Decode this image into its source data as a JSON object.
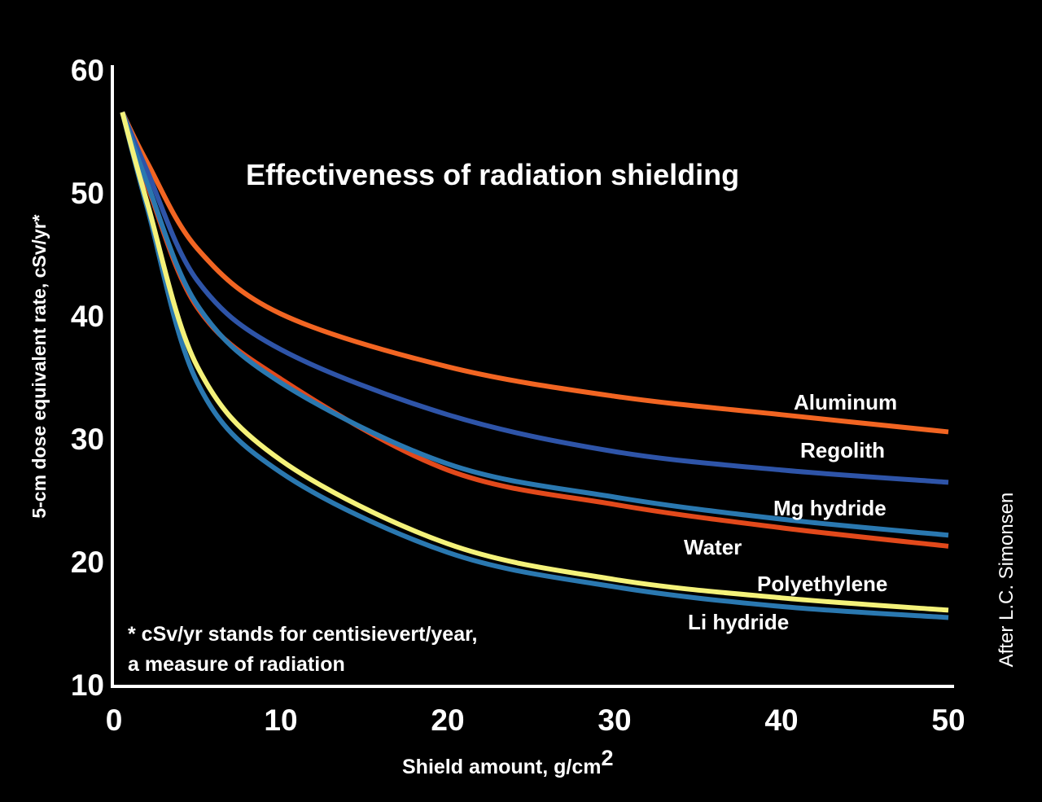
{
  "chart_data": {
    "type": "line",
    "title": "Effectiveness of radiation shielding",
    "xlabel": "Shield amount, g/cm",
    "xlabel_superscript": "2",
    "ylabel": "5-cm dose equivalent rate, cSv/yr*",
    "xlim": [
      0,
      50
    ],
    "ylim": [
      10,
      60
    ],
    "xticks": [
      "0",
      "10",
      "20",
      "30",
      "40",
      "50"
    ],
    "yticks": [
      "10",
      "20",
      "30",
      "40",
      "50",
      "60"
    ],
    "grid": false,
    "legend": "inline labels at right end of each curve",
    "footnote": [
      "* cSv/yr stands for centisievert/year,",
      "a measure of radiation"
    ],
    "credit": "After L.C. Simonsen",
    "x": [
      0.5,
      2,
      5,
      10,
      20,
      30,
      40,
      50
    ],
    "series": [
      {
        "name": "Aluminum",
        "color": "#f26522",
        "values": [
          56.5,
          52.4,
          45.4,
          40.1,
          35.8,
          33.4,
          31.9,
          30.5
        ]
      },
      {
        "name": "Regolith",
        "color": "#2e54a8",
        "values": [
          56.5,
          51.7,
          42.8,
          37.2,
          31.9,
          28.9,
          27.4,
          26.4
        ]
      },
      {
        "name": "Mg hydride",
        "color": "#2a78b0",
        "values": [
          56.5,
          50.7,
          40.8,
          34.5,
          27.9,
          25.2,
          23.4,
          22.1
        ]
      },
      {
        "name": "Water",
        "color": "#e2491b",
        "values": [
          56.5,
          50.5,
          40.6,
          34.8,
          27.4,
          24.6,
          22.7,
          21.2
        ]
      },
      {
        "name": "Polyethylene",
        "color": "#f4f27a",
        "values": [
          56.5,
          49.1,
          35.8,
          28.2,
          21.4,
          18.5,
          17.0,
          16.0
        ]
      },
      {
        "name": "Li hydride",
        "color": "#2a78b0",
        "values": [
          56.5,
          48.7,
          34.5,
          27.2,
          20.7,
          17.9,
          16.3,
          15.4
        ]
      }
    ]
  }
}
